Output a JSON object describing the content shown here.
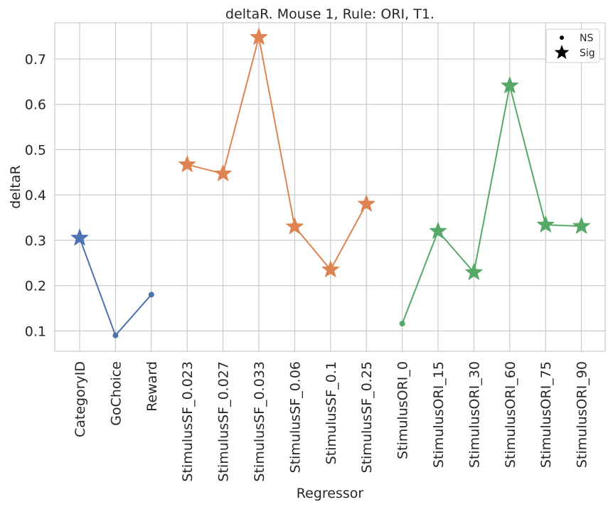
{
  "chart_data": {
    "type": "line",
    "title": "deltaR. Mouse 1, Rule: ORI, T1.",
    "xlabel": "Regressor",
    "ylabel": "deltaR",
    "categories": [
      "CategoryID",
      "GoChoice",
      "Reward",
      "StimulusSF_0.023",
      "StimulusSF_0.027",
      "StimulusSF_0.033",
      "StimulusSF_0.06",
      "StimulusSF_0.1",
      "StimulusSF_0.25",
      "StimulusORI_0",
      "StimulusORI_15",
      "StimulusORI_30",
      "StimulusORI_60",
      "StimulusORI_75",
      "StimulusORI_90"
    ],
    "ylim": [
      0.055,
      0.78
    ],
    "yticks": [
      0.1,
      0.2,
      0.3,
      0.4,
      0.5,
      0.6,
      0.7
    ],
    "grid": true,
    "legend_position": "top-right",
    "legend": [
      {
        "label": "NS",
        "marker": "dot"
      },
      {
        "label": "Sig",
        "marker": "star"
      }
    ],
    "series": [
      {
        "color": "#4c72b0",
        "points": [
          {
            "category": "CategoryID",
            "value": 0.305,
            "sig": true
          },
          {
            "category": "GoChoice",
            "value": 0.09,
            "sig": false
          },
          {
            "category": "Reward",
            "value": 0.18,
            "sig": false
          }
        ]
      },
      {
        "color": "#dd8452",
        "points": [
          {
            "category": "StimulusSF_0.023",
            "value": 0.467,
            "sig": true
          },
          {
            "category": "StimulusSF_0.027",
            "value": 0.447,
            "sig": true
          },
          {
            "category": "StimulusSF_0.033",
            "value": 0.748,
            "sig": true
          },
          {
            "category": "StimulusSF_0.06",
            "value": 0.33,
            "sig": true
          },
          {
            "category": "StimulusSF_0.1",
            "value": 0.235,
            "sig": true
          },
          {
            "category": "StimulusSF_0.25",
            "value": 0.38,
            "sig": true
          }
        ]
      },
      {
        "color": "#55a868",
        "points": [
          {
            "category": "StimulusORI_0",
            "value": 0.116,
            "sig": false
          },
          {
            "category": "StimulusORI_15",
            "value": 0.32,
            "sig": true
          },
          {
            "category": "StimulusORI_30",
            "value": 0.229,
            "sig": true
          },
          {
            "category": "StimulusORI_60",
            "value": 0.641,
            "sig": true
          },
          {
            "category": "StimulusORI_75",
            "value": 0.334,
            "sig": true
          },
          {
            "category": "StimulusORI_90",
            "value": 0.331,
            "sig": true
          }
        ]
      }
    ]
  }
}
